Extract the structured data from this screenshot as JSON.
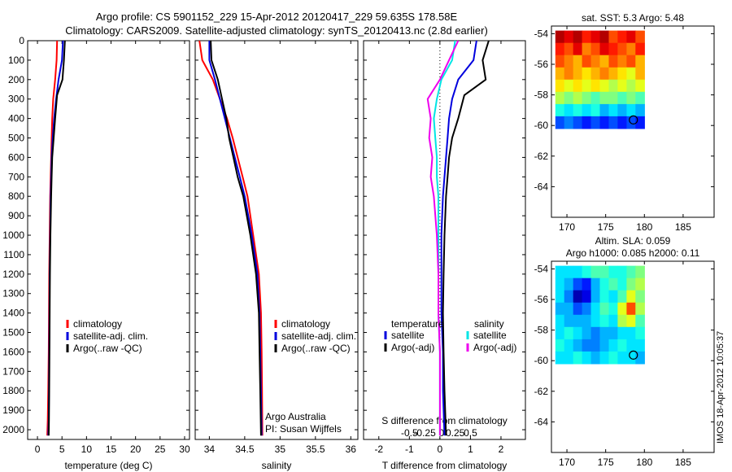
{
  "title_line1": "Argo profile: CS 5901152_229 15-Apr-2012 20120417_229 59.635S 178.58E",
  "title_line2": "Climatology: CARS2009. Satellite-adjusted climatology: synTS_20120413.nc (2.8d earlier)",
  "timestamp": "IMOS 18-Apr-2012 10:05:37",
  "colors": {
    "climatology": "#ff0000",
    "satellite": "#0000dd",
    "argo": "#000000",
    "satellite_salinity": "#00e5e5",
    "argo_salinity": "#ee00ee"
  },
  "chart_data": [
    {
      "type": "line",
      "id": "temperature",
      "title": "",
      "xlabel": "temperature (deg C)",
      "ylabel": "",
      "xlim": [
        -2,
        31
      ],
      "ylim": [
        2050,
        0
      ],
      "xticks": [
        0,
        5,
        10,
        15,
        20,
        25,
        30
      ],
      "yticks": [
        0,
        100,
        200,
        300,
        400,
        500,
        600,
        700,
        800,
        900,
        1000,
        1100,
        1200,
        1300,
        1400,
        1500,
        1600,
        1700,
        1800,
        1900,
        2000
      ],
      "legend": {
        "position": "lower-center",
        "entries": [
          "climatology",
          "satellite-adj. clim.",
          "Argo(..raw -QC)"
        ]
      },
      "series": [
        {
          "name": "climatology",
          "color": "#ff0000",
          "x": [
            4.0,
            3.9,
            3.6,
            3.2,
            3.0,
            2.9,
            2.8,
            2.7,
            2.6,
            2.5,
            2.4,
            2.35,
            2.3,
            2.2,
            2.1,
            2.0
          ],
          "y": [
            0,
            100,
            200,
            300,
            400,
            500,
            600,
            700,
            800,
            1000,
            1200,
            1400,
            1600,
            1800,
            1950,
            2030
          ]
        },
        {
          "name": "satellite-adj. clim.",
          "color": "#0000dd",
          "x": [
            5.2,
            5.0,
            4.3,
            3.8,
            3.4,
            3.1,
            2.9,
            2.8,
            2.7,
            2.6,
            2.5,
            2.45,
            2.4,
            2.35,
            2.3,
            2.2
          ],
          "y": [
            0,
            100,
            200,
            300,
            400,
            500,
            600,
            700,
            800,
            1000,
            1200,
            1400,
            1600,
            1800,
            1950,
            2030
          ]
        },
        {
          "name": "Argo(..raw -QC)",
          "color": "#000000",
          "x": [
            5.6,
            5.4,
            5.1,
            4.0,
            3.6,
            3.3,
            3.0,
            2.9,
            2.8,
            2.65,
            2.55,
            2.5,
            2.45,
            2.4,
            2.35,
            2.3
          ],
          "y": [
            0,
            100,
            200,
            280,
            400,
            500,
            600,
            700,
            800,
            1000,
            1200,
            1400,
            1600,
            1800,
            1950,
            2030
          ]
        }
      ]
    },
    {
      "type": "line",
      "id": "salinity",
      "title": "",
      "xlabel": "salinity",
      "ylabel": "",
      "xlim": [
        33.8,
        36.1
      ],
      "ylim": [
        2050,
        0
      ],
      "xticks": [
        34,
        34.5,
        35,
        35.5,
        36
      ],
      "xticklabels": [
        "34",
        "34.5",
        "35",
        "35.5",
        "36"
      ],
      "legend": {
        "position": "lower-center",
        "entries": [
          "climatology",
          "satellite-adj. clim.",
          "Argo(..raw -QC)"
        ]
      },
      "annotation": [
        "Argo Australia",
        "PI: Susan Wijffels"
      ],
      "series": [
        {
          "name": "climatology",
          "color": "#ff0000",
          "x": [
            33.86,
            33.9,
            34.05,
            34.15,
            34.25,
            34.33,
            34.4,
            34.47,
            34.54,
            34.62,
            34.7,
            34.73,
            34.74,
            34.745,
            34.75
          ],
          "y": [
            0,
            100,
            200,
            300,
            400,
            500,
            600,
            700,
            800,
            1000,
            1200,
            1400,
            1600,
            1800,
            2030
          ]
        },
        {
          "name": "satellite-adj. clim.",
          "color": "#0000dd",
          "x": [
            34.0,
            34.0,
            34.08,
            34.15,
            34.22,
            34.29,
            34.36,
            34.43,
            34.5,
            34.6,
            34.68,
            34.71,
            34.72,
            34.73,
            34.74
          ],
          "y": [
            0,
            100,
            200,
            300,
            400,
            500,
            600,
            700,
            800,
            1000,
            1200,
            1400,
            1600,
            1800,
            2030
          ]
        },
        {
          "name": "Argo(..raw -QC)",
          "color": "#000000",
          "x": [
            34.02,
            34.03,
            34.12,
            34.18,
            34.24,
            34.28,
            34.34,
            34.4,
            34.48,
            34.58,
            34.66,
            34.7,
            34.71,
            34.72,
            34.73
          ],
          "y": [
            0,
            100,
            200,
            300,
            400,
            500,
            600,
            700,
            800,
            1000,
            1200,
            1400,
            1600,
            1800,
            2030
          ]
        }
      ]
    },
    {
      "type": "line",
      "id": "difference",
      "title": "",
      "xlabel": "T difference from climatology",
      "xlabel_top": "S difference from climatology",
      "ylabel": "",
      "xlim": [
        -2.5,
        2.8
      ],
      "ylim": [
        2050,
        0
      ],
      "xticks": [
        -2,
        -1,
        0,
        1,
        2
      ],
      "xticks_s": [
        -0.5,
        -0.25,
        0,
        0.25,
        0.5
      ],
      "xticklabels_s": [
        "-0.5",
        "-0.25",
        "0",
        "0.25",
        "0.5"
      ],
      "legend": {
        "position": "lower-center",
        "headers": [
          "temperature",
          "salinity"
        ],
        "entries": [
          "satellite",
          "Argo(-adj)",
          "satellite",
          "Argo(-adj)"
        ]
      },
      "series": [
        {
          "name": "satellite",
          "group": "temperature",
          "color": "#0000dd",
          "x": [
            1.2,
            1.1,
            0.6,
            0.4,
            0.3,
            0.25,
            0.2,
            0.15,
            0.1,
            0.05,
            0.05,
            0.05,
            0.1,
            0.1,
            0.15
          ],
          "y": [
            0,
            100,
            200,
            300,
            400,
            500,
            600,
            700,
            800,
            1000,
            1200,
            1400,
            1600,
            1800,
            2030
          ]
        },
        {
          "name": "Argo(-adj)",
          "group": "temperature",
          "color": "#000000",
          "x": [
            1.6,
            1.4,
            1.5,
            0.8,
            0.6,
            0.4,
            0.3,
            0.25,
            0.2,
            0.15,
            0.12,
            0.1,
            0.12,
            0.15,
            0.2
          ],
          "y": [
            0,
            100,
            200,
            280,
            400,
            500,
            600,
            700,
            800,
            1000,
            1200,
            1400,
            1600,
            1800,
            2030
          ]
        },
        {
          "name": "satellite",
          "group": "salinity",
          "color": "#00e5e5",
          "x": [
            0.5,
            0.4,
            0.05,
            -0.1,
            -0.2,
            -0.15,
            -0.1,
            -0.1,
            -0.05,
            -0.05,
            -0.05,
            -0.05,
            0.0,
            0.0,
            0.0
          ],
          "y": [
            0,
            100,
            200,
            300,
            400,
            500,
            600,
            700,
            800,
            1000,
            1200,
            1400,
            1600,
            1800,
            2030
          ]
        },
        {
          "name": "Argo(-adj)",
          "group": "salinity",
          "color": "#ee00ee",
          "x": [
            0.6,
            0.3,
            0.0,
            -0.4,
            -0.3,
            -0.35,
            -0.25,
            -0.3,
            -0.2,
            -0.1,
            -0.05,
            -0.05,
            0.0,
            0.0,
            0.0
          ],
          "y": [
            0,
            100,
            200,
            300,
            400,
            500,
            600,
            700,
            800,
            1000,
            1200,
            1400,
            1600,
            1800,
            2030
          ]
        }
      ]
    },
    {
      "type": "heatmap",
      "id": "sst",
      "title": "sat. SST: 5.3 Argo: 5.48",
      "xlim": [
        168,
        189
      ],
      "ylim": [
        -66,
        -53.5
      ],
      "xticks": [
        170,
        175,
        180,
        185
      ],
      "yticks": [
        -54,
        -56,
        -58,
        -60,
        -62,
        -64
      ],
      "grid_extent": {
        "x": [
          168.5,
          180
        ],
        "y": [
          -60.2,
          -53.8
        ]
      },
      "profile_location": {
        "lon": 178.58,
        "lat": -59.635
      },
      "grid": [
        [
          0.95,
          0.9,
          0.95,
          0.85,
          0.9,
          0.95,
          0.8,
          0.85,
          0.9,
          0.8
        ],
        [
          0.85,
          0.8,
          0.9,
          0.75,
          0.8,
          0.9,
          0.85,
          0.8,
          0.75,
          0.85
        ],
        [
          0.8,
          0.75,
          0.7,
          0.8,
          0.75,
          0.7,
          0.8,
          0.75,
          0.8,
          0.7
        ],
        [
          0.7,
          0.75,
          0.7,
          0.65,
          0.7,
          0.75,
          0.7,
          0.65,
          0.6,
          0.7
        ],
        [
          0.65,
          0.6,
          0.65,
          0.6,
          0.65,
          0.6,
          0.55,
          0.6,
          0.55,
          0.6
        ],
        [
          0.55,
          0.5,
          0.55,
          0.5,
          0.45,
          0.5,
          0.5,
          0.45,
          0.5,
          0.45
        ],
        [
          0.4,
          0.35,
          0.4,
          0.35,
          0.4,
          0.3,
          0.35,
          0.3,
          0.35,
          0.3
        ],
        [
          0.2,
          0.25,
          0.2,
          0.15,
          0.2,
          0.15,
          0.2,
          0.15,
          0.2,
          0.15
        ]
      ]
    },
    {
      "type": "heatmap",
      "id": "sla",
      "title": [
        "Altim. SLA: 0.059",
        "Argo h1000: 0.085 h2000: 0.11"
      ],
      "xlim": [
        168,
        189
      ],
      "ylim": [
        -66,
        -53.5
      ],
      "xticks": [
        170,
        175,
        180,
        185
      ],
      "yticks": [
        -54,
        -56,
        -58,
        -60,
        -62,
        -64
      ],
      "grid_extent": {
        "x": [
          168.5,
          180
        ],
        "y": [
          -60.2,
          -53.8
        ]
      },
      "profile_location": {
        "lon": 178.58,
        "lat": -59.635
      },
      "grid": [
        [
          0.35,
          0.35,
          0.35,
          0.4,
          0.45,
          0.45,
          0.4,
          0.4,
          0.45,
          0.5
        ],
        [
          0.35,
          0.3,
          0.2,
          0.15,
          0.3,
          0.4,
          0.45,
          0.4,
          0.5,
          0.55
        ],
        [
          0.35,
          0.25,
          0.05,
          0.1,
          0.3,
          0.4,
          0.35,
          0.45,
          0.6,
          0.5
        ],
        [
          0.3,
          0.3,
          0.2,
          0.25,
          0.35,
          0.45,
          0.4,
          0.6,
          0.8,
          0.55
        ],
        [
          0.35,
          0.3,
          0.3,
          0.3,
          0.35,
          0.4,
          0.35,
          0.55,
          0.6,
          0.45
        ],
        [
          0.35,
          0.4,
          0.35,
          0.3,
          0.25,
          0.3,
          0.3,
          0.35,
          0.35,
          0.4
        ],
        [
          0.4,
          0.35,
          0.3,
          0.25,
          0.25,
          0.3,
          0.35,
          0.4,
          0.35,
          0.35
        ],
        [
          0.35,
          0.35,
          0.4,
          0.35,
          0.3,
          0.35,
          0.4,
          0.35,
          0.35,
          0.3
        ]
      ]
    }
  ]
}
